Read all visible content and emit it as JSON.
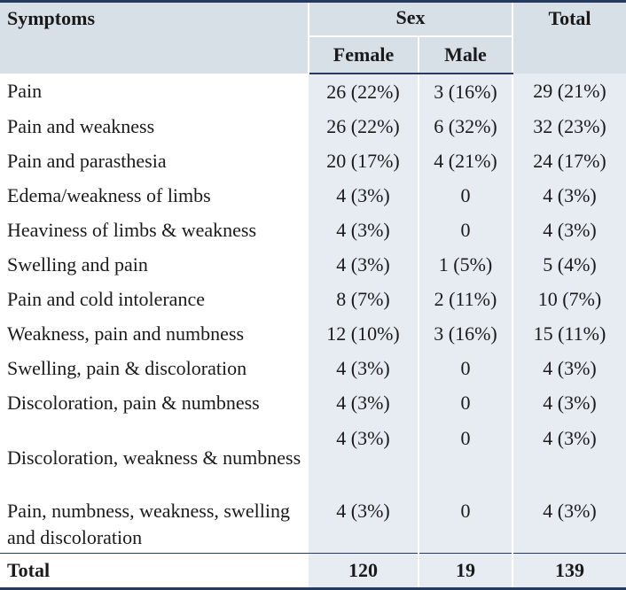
{
  "table": {
    "headers": {
      "symptoms": "Symptoms",
      "sex": "Sex",
      "total": "Total",
      "female": "Female",
      "male": "Male"
    },
    "rows": [
      {
        "symptom": "Pain",
        "female": "26 (22%)",
        "male": "3 (16%)",
        "total": "29 (21%)"
      },
      {
        "symptom": "Pain and weakness",
        "female": "26 (22%)",
        "male": "6 (32%)",
        "total": "32 (23%)"
      },
      {
        "symptom": "Pain and parasthesia",
        "female": "20 (17%)",
        "male": "4 (21%)",
        "total": "24 (17%)"
      },
      {
        "symptom": "Edema/weakness of limbs",
        "female": "4 (3%)",
        "male": "0",
        "total": "4 (3%)"
      },
      {
        "symptom": "Heaviness of limbs & weakness",
        "female": "4 (3%)",
        "male": "0",
        "total": "4 (3%)"
      },
      {
        "symptom": "Swelling and pain",
        "female": "4 (3%)",
        "male": "1 (5%)",
        "total": "5 (4%)"
      },
      {
        "symptom": "Pain and cold intolerance",
        "female": "8 (7%)",
        "male": "2 (11%)",
        "total": "10 (7%)"
      },
      {
        "symptom": "Weakness, pain and numbness",
        "female": "12 (10%)",
        "male": "3 (16%)",
        "total": "15 (11%)"
      },
      {
        "symptom": "Swelling, pain & discoloration",
        "female": "4 (3%)",
        "male": "0",
        "total": "4 (3%)"
      },
      {
        "symptom": "Discoloration, pain & numbness",
        "female": "4 (3%)",
        "male": "0",
        "total": "4 (3%)"
      },
      {
        "symptom": "Discoloration, weakness & numbness",
        "female": "4 (3%)",
        "male": "0",
        "total": "4 (3%)"
      },
      {
        "symptom": "Pain, numbness, weakness, swelling and discoloration",
        "female": "4 (3%)",
        "male": "0",
        "total": "4 (3%)"
      }
    ],
    "total_row": {
      "label": "Total",
      "female": "120",
      "male": "19",
      "total": "139"
    }
  },
  "colors": {
    "header_bg": "#d7dfe7",
    "data_bg": "#e6ecf1",
    "rule": "#243a63"
  }
}
